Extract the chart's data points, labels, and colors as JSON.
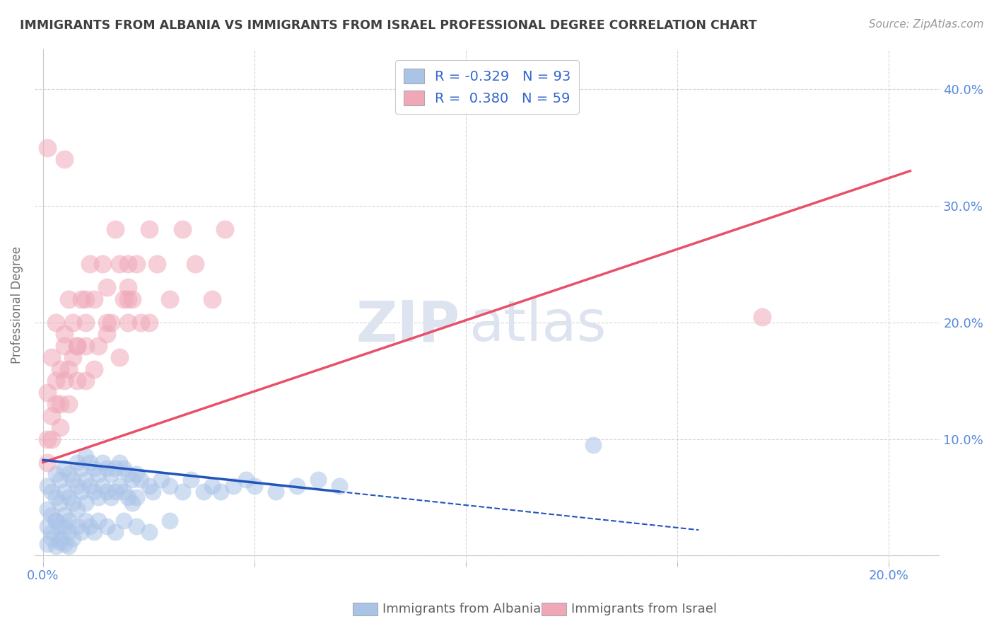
{
  "title": "IMMIGRANTS FROM ALBANIA VS IMMIGRANTS FROM ISRAEL PROFESSIONAL DEGREE CORRELATION CHART",
  "source": "Source: ZipAtlas.com",
  "ylabel_label": "Professional Degree",
  "xlim": [
    -0.002,
    0.212
  ],
  "ylim": [
    -0.005,
    0.435
  ],
  "albania_color": "#aac4e8",
  "albania_edge_color": "#aac4e8",
  "israel_color": "#f0a8b8",
  "israel_edge_color": "#f0a8b8",
  "albania_line_color": "#2255bb",
  "israel_line_color": "#e8506a",
  "albania_R": -0.329,
  "albania_N": 93,
  "israel_R": 0.38,
  "israel_N": 59,
  "albania_line_x0": 0.0,
  "albania_line_y0": 0.082,
  "albania_line_x1": 0.155,
  "albania_line_y1": 0.022,
  "albania_line_solid_x1": 0.07,
  "israel_line_x0": 0.0,
  "israel_line_y0": 0.08,
  "israel_line_x1": 0.205,
  "israel_line_y1": 0.33,
  "grid_color": "#cccccc",
  "bg_color": "#ffffff",
  "title_color": "#404040",
  "axis_tick_color": "#5588dd",
  "watermark_color": "#dde4ef",
  "albania_scatter_x": [
    0.001,
    0.001,
    0.002,
    0.002,
    0.003,
    0.003,
    0.003,
    0.004,
    0.004,
    0.004,
    0.005,
    0.005,
    0.005,
    0.006,
    0.006,
    0.006,
    0.007,
    0.007,
    0.008,
    0.008,
    0.008,
    0.009,
    0.009,
    0.01,
    0.01,
    0.01,
    0.011,
    0.011,
    0.012,
    0.012,
    0.013,
    0.013,
    0.014,
    0.014,
    0.015,
    0.015,
    0.016,
    0.016,
    0.017,
    0.017,
    0.018,
    0.018,
    0.019,
    0.019,
    0.02,
    0.02,
    0.021,
    0.021,
    0.022,
    0.022,
    0.023,
    0.025,
    0.026,
    0.028,
    0.03,
    0.033,
    0.035,
    0.038,
    0.04,
    0.042,
    0.045,
    0.048,
    0.05,
    0.055,
    0.06,
    0.065,
    0.07,
    0.001,
    0.002,
    0.003,
    0.004,
    0.005,
    0.006,
    0.007,
    0.008,
    0.009,
    0.01,
    0.011,
    0.012,
    0.013,
    0.015,
    0.017,
    0.019,
    0.022,
    0.025,
    0.03,
    0.001,
    0.002,
    0.003,
    0.004,
    0.005,
    0.006,
    0.13
  ],
  "albania_scatter_y": [
    0.06,
    0.04,
    0.055,
    0.035,
    0.07,
    0.05,
    0.03,
    0.065,
    0.045,
    0.025,
    0.075,
    0.055,
    0.035,
    0.07,
    0.05,
    0.03,
    0.065,
    0.045,
    0.08,
    0.06,
    0.04,
    0.075,
    0.055,
    0.085,
    0.065,
    0.045,
    0.08,
    0.06,
    0.075,
    0.055,
    0.07,
    0.05,
    0.08,
    0.06,
    0.075,
    0.055,
    0.07,
    0.05,
    0.075,
    0.055,
    0.08,
    0.06,
    0.075,
    0.055,
    0.07,
    0.05,
    0.065,
    0.045,
    0.07,
    0.05,
    0.065,
    0.06,
    0.055,
    0.065,
    0.06,
    0.055,
    0.065,
    0.055,
    0.06,
    0.055,
    0.06,
    0.065,
    0.06,
    0.055,
    0.06,
    0.065,
    0.06,
    0.025,
    0.02,
    0.03,
    0.015,
    0.025,
    0.02,
    0.015,
    0.025,
    0.02,
    0.03,
    0.025,
    0.02,
    0.03,
    0.025,
    0.02,
    0.03,
    0.025,
    0.02,
    0.03,
    0.01,
    0.015,
    0.008,
    0.012,
    0.01,
    0.008,
    0.095
  ],
  "israel_scatter_x": [
    0.001,
    0.002,
    0.003,
    0.004,
    0.005,
    0.006,
    0.007,
    0.008,
    0.009,
    0.01,
    0.01,
    0.011,
    0.012,
    0.013,
    0.014,
    0.015,
    0.016,
    0.017,
    0.018,
    0.019,
    0.02,
    0.02,
    0.021,
    0.022,
    0.023,
    0.025,
    0.027,
    0.03,
    0.033,
    0.036,
    0.04,
    0.043,
    0.001,
    0.002,
    0.003,
    0.004,
    0.005,
    0.006,
    0.007,
    0.008,
    0.01,
    0.012,
    0.015,
    0.018,
    0.02,
    0.001,
    0.002,
    0.003,
    0.004,
    0.005,
    0.006,
    0.008,
    0.01,
    0.015,
    0.02,
    0.025,
    0.001,
    0.005,
    0.17
  ],
  "israel_scatter_y": [
    0.1,
    0.12,
    0.15,
    0.13,
    0.18,
    0.16,
    0.2,
    0.18,
    0.22,
    0.2,
    0.15,
    0.25,
    0.22,
    0.18,
    0.25,
    0.23,
    0.2,
    0.28,
    0.25,
    0.22,
    0.25,
    0.2,
    0.22,
    0.25,
    0.2,
    0.28,
    0.25,
    0.22,
    0.28,
    0.25,
    0.22,
    0.28,
    0.08,
    0.1,
    0.13,
    0.11,
    0.15,
    0.13,
    0.17,
    0.15,
    0.18,
    0.16,
    0.2,
    0.17,
    0.22,
    0.14,
    0.17,
    0.2,
    0.16,
    0.19,
    0.22,
    0.18,
    0.22,
    0.19,
    0.23,
    0.2,
    0.35,
    0.34,
    0.205
  ]
}
